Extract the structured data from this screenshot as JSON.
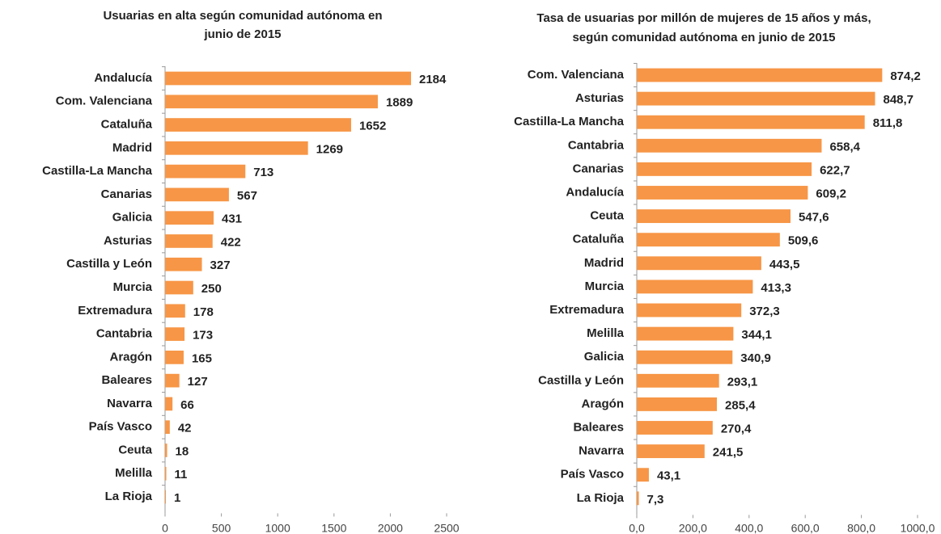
{
  "chart_data": [
    {
      "type": "bar",
      "orientation": "horizontal",
      "title": [
        "Usuarias en alta según comunidad autónoma en",
        "junio de 2015"
      ],
      "categories": [
        "Andalucía",
        "Com. Valenciana",
        "Cataluña",
        "Madrid",
        "Castilla-La Mancha",
        "Canarias",
        "Galicia",
        "Asturias",
        "Castilla y León",
        "Murcia",
        "Extremadura",
        "Cantabria",
        "Aragón",
        "Baleares",
        "Navarra",
        "País Vasco",
        "Ceuta",
        "Melilla",
        "La Rioja"
      ],
      "values": [
        2184,
        1889,
        1652,
        1269,
        713,
        567,
        431,
        422,
        327,
        250,
        178,
        173,
        165,
        127,
        66,
        42,
        18,
        11,
        1
      ],
      "color": "#f79646",
      "xlim": [
        0,
        2500
      ],
      "xticks": [
        0,
        500,
        1000,
        1500,
        2000,
        2500
      ]
    },
    {
      "type": "bar",
      "orientation": "horizontal",
      "title": [
        "Tasa de usuarias por millón de mujeres de 15 años y más,",
        "según comunidad autónoma en junio de 2015"
      ],
      "categories": [
        "Com. Valenciana",
        "Asturias",
        "Castilla-La Mancha",
        "Cantabria",
        "Canarias",
        "Andalucía",
        "Ceuta",
        "Cataluña",
        "Madrid",
        "Murcia",
        "Extremadura",
        "Melilla",
        "Galicia",
        "Castilla y León",
        "Aragón",
        "Baleares",
        "Navarra",
        "País Vasco",
        "La Rioja"
      ],
      "values": [
        874.2,
        848.7,
        811.8,
        658.4,
        622.7,
        609.2,
        547.6,
        509.6,
        443.5,
        413.3,
        372.3,
        344.1,
        340.9,
        293.1,
        285.4,
        270.4,
        241.5,
        43.1,
        7.3
      ],
      "value_labels": [
        "874,2",
        "848,7",
        "811,8",
        "658,4",
        "622,7",
        "609,2",
        "547,6",
        "509,6",
        "443,5",
        "413,3",
        "372,3",
        "344,1",
        "340,9",
        "293,1",
        "285,4",
        "270,4",
        "241,5",
        "43,1",
        "7,3"
      ],
      "color": "#f79646",
      "xlim": [
        0,
        1000
      ],
      "xticks": [
        {
          "value": 0,
          "label": "0,0"
        },
        {
          "value": 200,
          "label": "200,0"
        },
        {
          "value": 400,
          "label": "400,0"
        },
        {
          "value": 600,
          "label": "600,0"
        },
        {
          "value": 800,
          "label": "800,0"
        },
        {
          "value": 1000,
          "label": "1000,0"
        }
      ]
    }
  ]
}
